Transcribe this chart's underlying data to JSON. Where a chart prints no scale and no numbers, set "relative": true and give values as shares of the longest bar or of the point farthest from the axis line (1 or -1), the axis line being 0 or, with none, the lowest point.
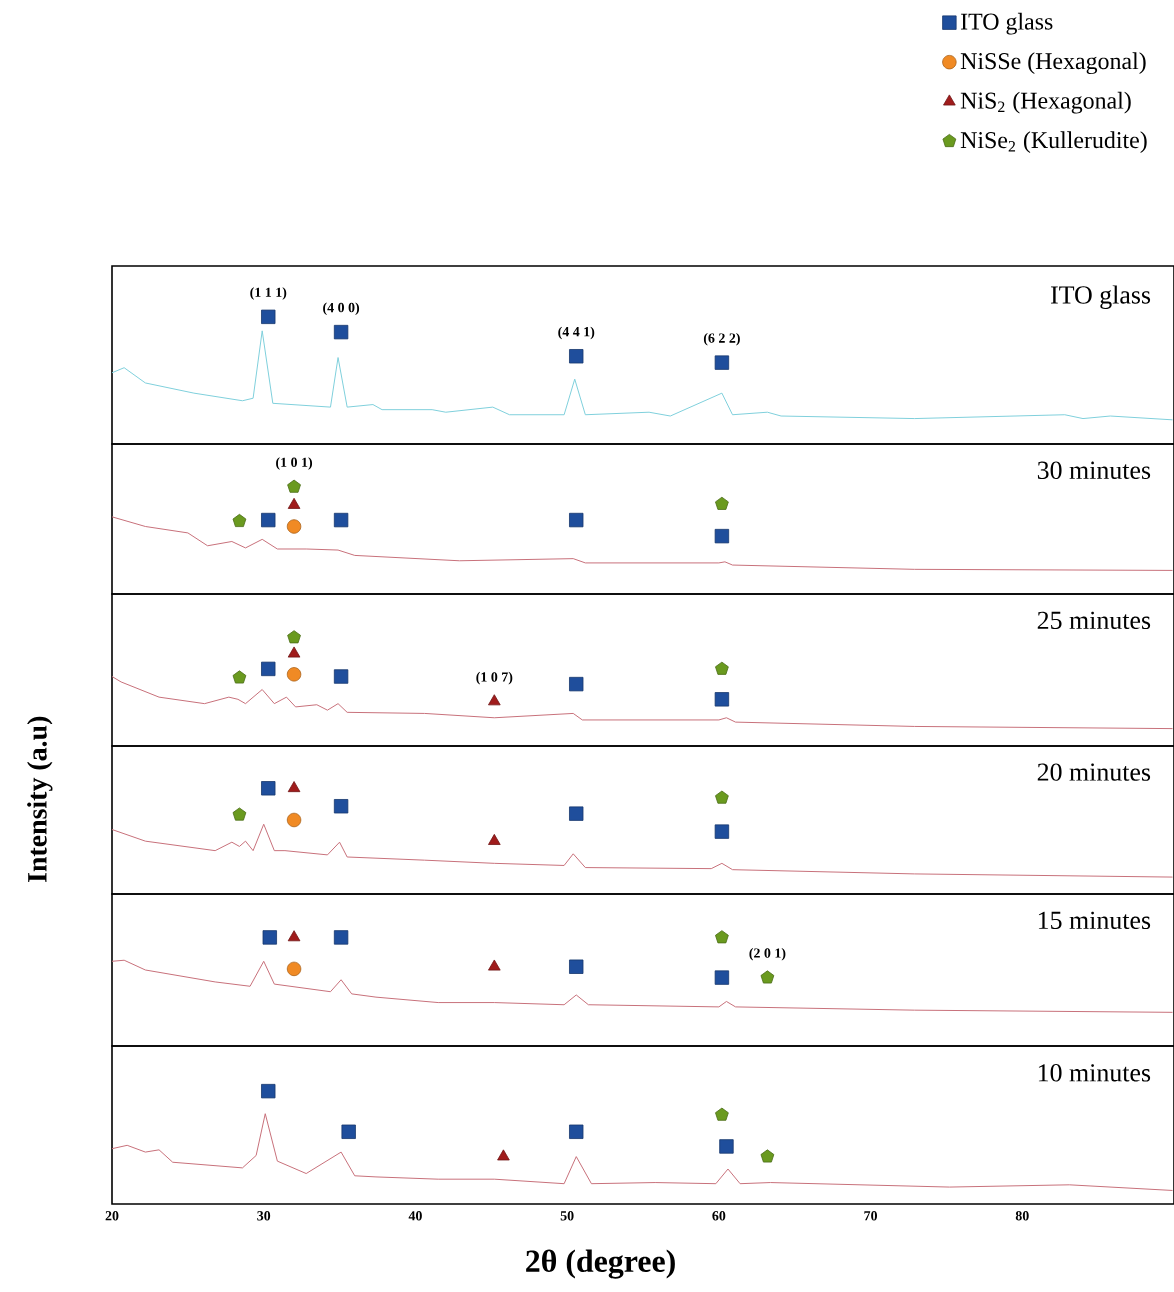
{
  "chart_data": [
    {
      "type": "line",
      "title": "ITO glass",
      "xlim": [
        20,
        90
      ],
      "relative": true,
      "tick_labels": false,
      "series": [
        {
          "type": "line",
          "color": "#7fd0dc",
          "x": [
            20,
            20.8,
            22.2,
            25.4,
            28.6,
            29.3,
            29.9,
            30.6,
            34.4,
            34.9,
            35.5,
            37.2,
            37.8,
            41.1,
            42.0,
            45.1,
            46.2,
            49.8,
            50.5,
            51.2,
            55.4,
            56.8,
            60.2,
            60.9,
            63.2,
            64.1,
            72.9,
            82.8,
            84.0,
            85.8,
            89.9
          ],
          "values": [
            0.56,
            0.6,
            0.48,
            0.4,
            0.34,
            0.36,
            0.89,
            0.32,
            0.29,
            0.68,
            0.29,
            0.31,
            0.27,
            0.27,
            0.25,
            0.29,
            0.23,
            0.23,
            0.51,
            0.23,
            0.25,
            0.22,
            0.4,
            0.23,
            0.25,
            0.22,
            0.2,
            0.23,
            0.2,
            0.22,
            0.19
          ]
        },
        {
          "type": "scatter",
          "marker": "square",
          "color": "#1f4e9c",
          "x": [
            30.3,
            35.1,
            50.6,
            60.2
          ],
          "values": [
            1.0,
            0.88,
            0.69,
            0.64
          ]
        }
      ],
      "annotations": [
        {
          "text": "(1 1 1)",
          "x": 30.3,
          "y": 1.0
        },
        {
          "text": "(4 0 0)",
          "x": 35.1,
          "y": 0.88
        },
        {
          "text": "(4 4 1)",
          "x": 50.6,
          "y": 0.69
        },
        {
          "text": "(6 2 2)",
          "x": 60.2,
          "y": 0.64
        }
      ]
    },
    {
      "type": "line",
      "title": "30 minutes",
      "xlim": [
        20,
        90
      ],
      "relative": true,
      "tick_labels": false,
      "legend": "top right",
      "series": [
        {
          "type": "line",
          "color": "#c8707a",
          "x": [
            20,
            22.2,
            25.0,
            26.3,
            27.9,
            28.8,
            29.9,
            30.9,
            32.8,
            34.9,
            36.0,
            42.9,
            50.4,
            51.2,
            60.0,
            60.4,
            60.9,
            72.9,
            89.9
          ],
          "values": [
            0.72,
            0.63,
            0.57,
            0.45,
            0.49,
            0.43,
            0.51,
            0.42,
            0.42,
            0.41,
            0.36,
            0.31,
            0.33,
            0.29,
            0.29,
            0.3,
            0.27,
            0.23,
            0.22
          ]
        },
        {
          "type": "scatter",
          "name": "ITO glass",
          "marker": "square",
          "color": "#1f4e9c",
          "x": [
            30.3,
            35.1,
            50.6,
            60.2
          ],
          "values": [
            0.69,
            0.69,
            0.69,
            0.54
          ]
        },
        {
          "type": "scatter",
          "name": "NiSSe (Hexagonal)",
          "marker": "circle",
          "color": "#f08a24",
          "x": [
            32.0
          ],
          "values": [
            0.63
          ]
        },
        {
          "type": "scatter",
          "name": "NiS$_{2}$ (Hexagonal)",
          "marker": "triangle",
          "color": "#a01c1c",
          "x": [
            32.0
          ],
          "values": [
            0.83
          ]
        },
        {
          "type": "scatter",
          "name": "NiSe$_{2}$ (Kullerudite)",
          "color": "#6a9a1f",
          "x": [
            28.4,
            32.0,
            60.2
          ],
          "values": [
            0.68,
            1.0,
            0.84
          ]
        }
      ],
      "annotations": [
        {
          "text": "(1 0 1)",
          "x": 32.0,
          "y": 1.0
        }
      ]
    },
    {
      "type": "line",
      "title": "25 minutes",
      "xlim": [
        20,
        90
      ],
      "relative": true,
      "tick_labels": false,
      "series": [
        {
          "type": "line",
          "color": "#c8707a",
          "x": [
            20,
            20.6,
            23.1,
            26.1,
            27.7,
            28.3,
            28.8,
            29.9,
            30.7,
            31.5,
            32.1,
            33.5,
            34.2,
            34.9,
            35.5,
            40.6,
            45.2,
            50.4,
            51.0,
            60.0,
            60.5,
            61.1,
            72.9,
            89.9
          ],
          "values": [
            0.64,
            0.59,
            0.45,
            0.39,
            0.45,
            0.43,
            0.39,
            0.52,
            0.39,
            0.45,
            0.36,
            0.38,
            0.33,
            0.39,
            0.31,
            0.3,
            0.26,
            0.3,
            0.24,
            0.24,
            0.26,
            0.22,
            0.18,
            0.16
          ]
        },
        {
          "type": "scatter",
          "marker": "square",
          "color": "#1f4e9c",
          "x": [
            30.3,
            35.1,
            50.6,
            60.2
          ],
          "values": [
            0.71,
            0.64,
            0.57,
            0.43
          ]
        },
        {
          "type": "scatter",
          "marker": "circle",
          "color": "#f08a24",
          "x": [
            32.0
          ],
          "values": [
            0.66
          ]
        },
        {
          "type": "scatter",
          "marker": "triangle",
          "color": "#a01c1c",
          "x": [
            32.0,
            45.2
          ],
          "values": [
            0.85,
            0.41
          ]
        },
        {
          "type": "scatter",
          "color": "#6a9a1f",
          "x": [
            28.4,
            32.0,
            60.2
          ],
          "values": [
            0.63,
            1.0,
            0.71
          ]
        }
      ],
      "annotations": [
        {
          "text": "(1 0 7)",
          "x": 45.2,
          "y": 0.41
        }
      ]
    },
    {
      "type": "line",
      "title": "20 minutes",
      "xlim": [
        20,
        90
      ],
      "relative": true,
      "tick_labels": false,
      "ylabel": "Intensity (a.u)",
      "series": [
        {
          "type": "line",
          "color": "#c8707a",
          "x": [
            20,
            22.2,
            26.8,
            27.9,
            28.4,
            28.8,
            29.3,
            30.0,
            30.7,
            31.4,
            34.2,
            35.0,
            35.5,
            40.6,
            45.2,
            49.8,
            50.4,
            51.2,
            59.5,
            60.2,
            60.9,
            72.9,
            89.9
          ],
          "values": [
            0.61,
            0.5,
            0.41,
            0.49,
            0.45,
            0.5,
            0.41,
            0.66,
            0.41,
            0.41,
            0.37,
            0.49,
            0.35,
            0.32,
            0.29,
            0.27,
            0.38,
            0.25,
            0.24,
            0.29,
            0.23,
            0.19,
            0.16
          ]
        },
        {
          "type": "scatter",
          "marker": "square",
          "color": "#1f4e9c",
          "x": [
            30.3,
            35.1,
            50.6,
            60.2
          ],
          "values": [
            1.0,
            0.83,
            0.76,
            0.59
          ]
        },
        {
          "type": "scatter",
          "marker": "circle",
          "color": "#f08a24",
          "x": [
            32.0
          ],
          "values": [
            0.7
          ]
        },
        {
          "type": "scatter",
          "marker": "triangle",
          "color": "#a01c1c",
          "x": [
            32.0,
            45.2
          ],
          "values": [
            1.0,
            0.5
          ]
        },
        {
          "type": "scatter",
          "color": "#6a9a1f",
          "x": [
            28.4,
            60.2
          ],
          "values": [
            0.75,
            0.91
          ]
        }
      ]
    },
    {
      "type": "line",
      "title": "15 minutes",
      "xlim": [
        20,
        90
      ],
      "relative": true,
      "tick_labels": false,
      "series": [
        {
          "type": "line",
          "color": "#c8707a",
          "x": [
            20,
            20.8,
            22.2,
            26.8,
            29.1,
            30.0,
            30.7,
            34.4,
            35.1,
            35.8,
            37.4,
            41.5,
            45.2,
            49.8,
            50.6,
            51.4,
            60.0,
            60.5,
            61.1,
            72.9,
            89.9
          ],
          "values": [
            0.78,
            0.79,
            0.7,
            0.59,
            0.55,
            0.78,
            0.57,
            0.5,
            0.61,
            0.48,
            0.45,
            0.4,
            0.4,
            0.38,
            0.47,
            0.38,
            0.36,
            0.41,
            0.36,
            0.33,
            0.31
          ]
        },
        {
          "type": "scatter",
          "marker": "square",
          "color": "#1f4e9c",
          "x": [
            30.4,
            35.1,
            50.6,
            60.2
          ],
          "values": [
            1.0,
            1.0,
            0.73,
            0.63
          ]
        },
        {
          "type": "scatter",
          "marker": "circle",
          "color": "#f08a24",
          "x": [
            32.0
          ],
          "values": [
            0.71
          ]
        },
        {
          "type": "scatter",
          "marker": "triangle",
          "color": "#a01c1c",
          "x": [
            32.0,
            45.2
          ],
          "values": [
            1.0,
            0.73
          ]
        },
        {
          "type": "scatter",
          "color": "#6a9a1f",
          "x": [
            60.2,
            63.2
          ],
          "values": [
            1.0,
            0.63
          ]
        }
      ],
      "annotations": [
        {
          "text": "(2 0 1)",
          "x": 63.2,
          "y": 0.63
        }
      ]
    },
    {
      "type": "line",
      "title": "10 minutes",
      "xlim": [
        20,
        90
      ],
      "xticks": [
        20,
        30,
        40,
        50,
        60,
        70,
        80
      ],
      "relative": true,
      "tick_labels": "x",
      "xlabel": "2θ (degree)",
      "series": [
        {
          "type": "line",
          "color": "#c8707a",
          "x": [
            20,
            21.0,
            22.2,
            23.1,
            24.0,
            28.6,
            29.5,
            30.1,
            30.9,
            32.8,
            35.1,
            36.0,
            37.4,
            41.5,
            45.2,
            49.8,
            50.6,
            51.6,
            55.8,
            59.8,
            60.6,
            61.4,
            63.4,
            75.2,
            83.1,
            89.9
          ],
          "values": [
            0.49,
            0.52,
            0.46,
            0.48,
            0.37,
            0.32,
            0.43,
            0.8,
            0.38,
            0.27,
            0.46,
            0.25,
            0.24,
            0.22,
            0.22,
            0.18,
            0.42,
            0.18,
            0.19,
            0.18,
            0.31,
            0.18,
            0.19,
            0.15,
            0.17,
            0.12
          ]
        },
        {
          "type": "scatter",
          "marker": "square",
          "color": "#1f4e9c",
          "x": [
            30.3,
            35.6,
            50.6,
            60.5
          ],
          "values": [
            1.0,
            0.64,
            0.64,
            0.51
          ]
        },
        {
          "type": "scatter",
          "marker": "triangle",
          "color": "#a01c1c",
          "x": [
            45.8
          ],
          "values": [
            0.42
          ]
        },
        {
          "type": "scatter",
          "color": "#6a9a1f",
          "x": [
            60.2,
            63.2
          ],
          "values": [
            0.79,
            0.42
          ]
        }
      ]
    }
  ]
}
